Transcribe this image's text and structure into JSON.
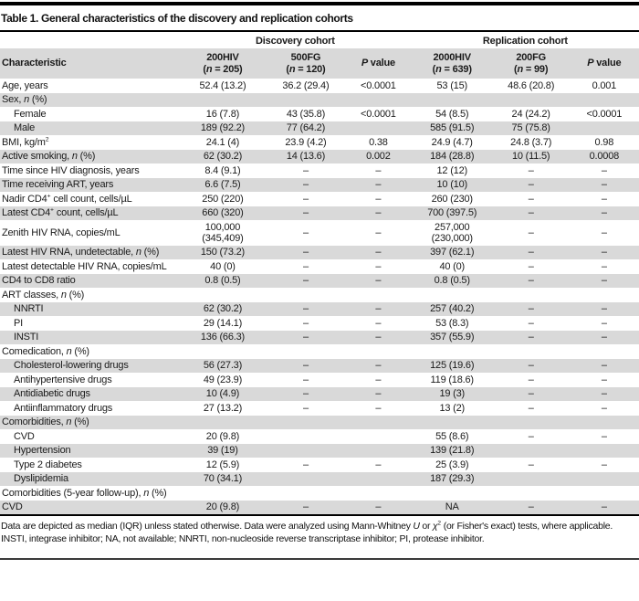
{
  "title": "Table 1. General characteristics of the discovery and replication cohorts",
  "colors": {
    "row_shade": "#d9d9d9",
    "rule": "#000000",
    "footer_rule": "#3a3a3a"
  },
  "table": {
    "group_headers": [
      {
        "label": "Discovery cohort"
      },
      {
        "label": "Replication cohort"
      }
    ],
    "columns": [
      {
        "name": "Characteristic"
      },
      {
        "name": "200HIV",
        "n": "(*n* = 205)"
      },
      {
        "name": "500FG",
        "n": "(*n* = 120)"
      },
      {
        "name": "*P* value"
      },
      {
        "name": "2000HIV",
        "n": "(*n* = 639)"
      },
      {
        "name": "200FG",
        "n": "(*n* = 99)"
      },
      {
        "name": "*P* value"
      }
    ],
    "rows": [
      {
        "label": "Age, years",
        "indent": false,
        "cells": [
          "52.4 (13.2)",
          "36.2 (29.4)",
          "<0.0001",
          "53 (15)",
          "48.6 (20.8)",
          "0.001"
        ]
      },
      {
        "label": "Sex, *n* (%)",
        "indent": false,
        "cells": [
          "",
          "",
          "",
          "",
          "",
          ""
        ]
      },
      {
        "label": "Female",
        "indent": true,
        "cells": [
          "16 (7.8)",
          "43 (35.8)",
          "<0.0001",
          "54 (8.5)",
          "24 (24.2)",
          "<0.0001"
        ]
      },
      {
        "label": "Male",
        "indent": true,
        "cells": [
          "189 (92.2)",
          "77 (64.2)",
          "",
          "585 (91.5)",
          "75 (75.8)",
          ""
        ]
      },
      {
        "label": "BMI, kg/m^2",
        "indent": false,
        "cells": [
          "24.1 (4)",
          "23.9 (4.2)",
          "0.38",
          "24.9 (4.7)",
          "24.8 (3.7)",
          "0.98"
        ]
      },
      {
        "label": "Active smoking, *n* (%)",
        "indent": false,
        "cells": [
          "62 (30.2)",
          "14 (13.6)",
          "0.002",
          "184 (28.8)",
          "10 (11.5)",
          "0.0008"
        ]
      },
      {
        "label": "Time since HIV diagnosis, years",
        "indent": false,
        "cells": [
          "8.4 (9.1)",
          "–",
          "–",
          "12 (12)",
          "–",
          "–"
        ]
      },
      {
        "label": "Time receiving ART, years",
        "indent": false,
        "cells": [
          "6.6 (7.5)",
          "–",
          "–",
          "10 (10)",
          "–",
          "–"
        ]
      },
      {
        "label": "Nadir CD4^+ cell count, cells/µL",
        "indent": false,
        "cells": [
          "250 (220)",
          "–",
          "–",
          "260 (230)",
          "–",
          "–"
        ]
      },
      {
        "label": "Latest CD4^+ count, cells/µL",
        "indent": false,
        "cells": [
          "660 (320)",
          "–",
          "–",
          "700 (397.5)",
          "–",
          "–"
        ]
      },
      {
        "label": "Zenith HIV RNA, copies/mL",
        "indent": false,
        "cells": [
          "100,000\n(345,409)",
          "–",
          "–",
          "257,000\n(230,000)",
          "–",
          "–"
        ]
      },
      {
        "label": "Latest HIV RNA, undetectable, *n* (%)",
        "indent": false,
        "cells": [
          "150 (73.2)",
          "–",
          "–",
          "397 (62.1)",
          "–",
          "–"
        ]
      },
      {
        "label": "Latest detectable HIV RNA, copies/mL",
        "indent": false,
        "cells": [
          "40 (0)",
          "–",
          "–",
          "40 (0)",
          "–",
          "–"
        ]
      },
      {
        "label": "CD4 to CD8 ratio",
        "indent": false,
        "cells": [
          "0.8 (0.5)",
          "–",
          "–",
          "0.8 (0.5)",
          "–",
          "–"
        ]
      },
      {
        "label": "ART classes, *n* (%)",
        "indent": false,
        "cells": [
          "",
          "",
          "",
          "",
          "",
          ""
        ]
      },
      {
        "label": "NNRTI",
        "indent": true,
        "cells": [
          "62 (30.2)",
          "–",
          "–",
          "257 (40.2)",
          "–",
          "–"
        ]
      },
      {
        "label": "PI",
        "indent": true,
        "cells": [
          "29 (14.1)",
          "–",
          "–",
          "53 (8.3)",
          "–",
          "–"
        ]
      },
      {
        "label": "INSTI",
        "indent": true,
        "cells": [
          "136 (66.3)",
          "–",
          "–",
          "357 (55.9)",
          "–",
          "–"
        ]
      },
      {
        "label": "Comedication, *n* (%)",
        "indent": false,
        "cells": [
          "",
          "",
          "",
          "",
          "",
          ""
        ]
      },
      {
        "label": "Cholesterol-lowering drugs",
        "indent": true,
        "cells": [
          "56 (27.3)",
          "–",
          "–",
          "125 (19.6)",
          "–",
          "–"
        ]
      },
      {
        "label": "Antihypertensive drugs",
        "indent": true,
        "cells": [
          "49 (23.9)",
          "–",
          "–",
          "119 (18.6)",
          "–",
          "–"
        ]
      },
      {
        "label": "Antidiabetic drugs",
        "indent": true,
        "cells": [
          "10 (4.9)",
          "–",
          "–",
          "19 (3)",
          "–",
          "–"
        ]
      },
      {
        "label": "Antiinflammatory drugs",
        "indent": true,
        "cells": [
          "27 (13.2)",
          "–",
          "–",
          "13 (2)",
          "–",
          "–"
        ]
      },
      {
        "label": "Comorbidities, *n* (%)",
        "indent": false,
        "cells": [
          "",
          "",
          "",
          "",
          "",
          ""
        ]
      },
      {
        "label": "CVD",
        "indent": true,
        "cells": [
          "20 (9.8)",
          "",
          "",
          "55 (8.6)",
          "–",
          "–"
        ]
      },
      {
        "label": "Hypertension",
        "indent": true,
        "cells": [
          "39 (19)",
          "",
          "",
          "139 (21.8)",
          "",
          ""
        ]
      },
      {
        "label": "Type 2 diabetes",
        "indent": true,
        "cells": [
          "12 (5.9)",
          "–",
          "–",
          "25 (3.9)",
          "–",
          "–"
        ]
      },
      {
        "label": "Dyslipidemia",
        "indent": true,
        "cells": [
          "70 (34.1)",
          "",
          "",
          "187 (29.3)",
          "",
          ""
        ]
      },
      {
        "label": "Comorbidities (5-year follow-up), *n* (%)",
        "indent": false,
        "cells": [
          "",
          "",
          "",
          "",
          "",
          ""
        ]
      },
      {
        "label": "CVD",
        "indent": false,
        "cells": [
          "20 (9.8)",
          "–",
          "–",
          "NA",
          "–",
          "–"
        ]
      }
    ]
  },
  "footnotes": [
    "Data are depicted as median (IQR) unless stated otherwise. Data were analyzed using Mann-Whitney *U* or *χ*^2 (or Fisher's exact) tests, where applicable.",
    "INSTI, integrase inhibitor; NA, not available; NNRTI, non-nucleoside reverse transcriptase inhibitor; PI, protease inhibitor."
  ]
}
